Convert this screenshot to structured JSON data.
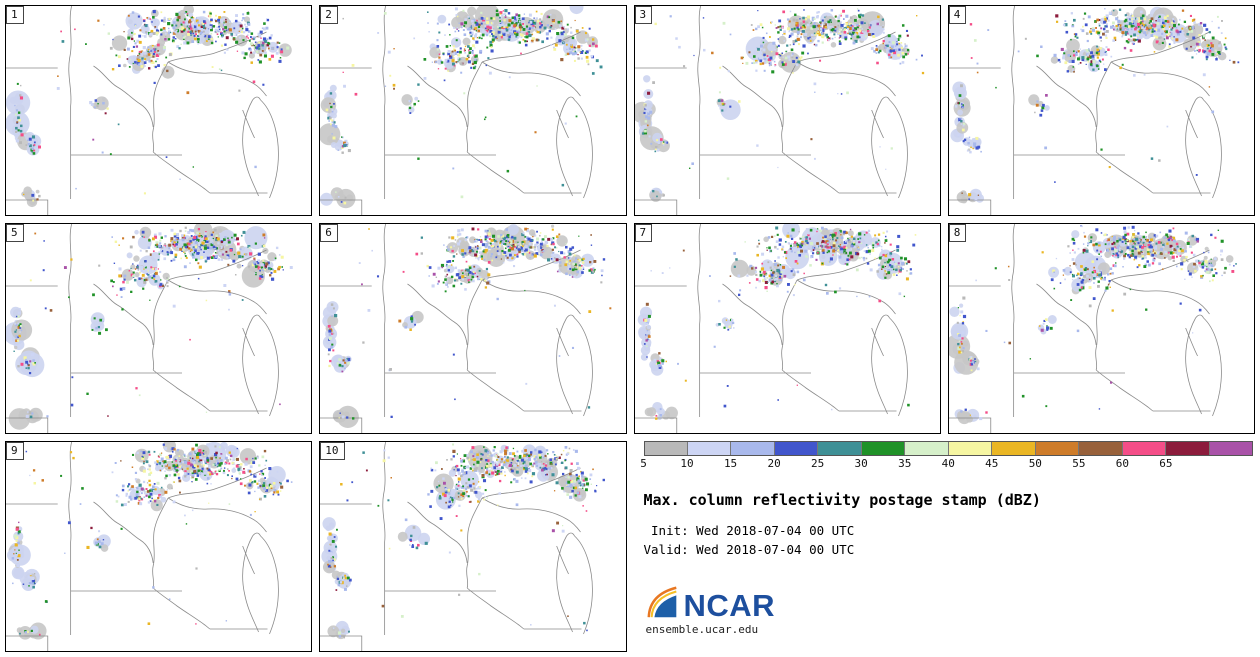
{
  "panels": [
    {
      "label": "1"
    },
    {
      "label": "2"
    },
    {
      "label": "3"
    },
    {
      "label": "4"
    },
    {
      "label": "5"
    },
    {
      "label": "6"
    },
    {
      "label": "7"
    },
    {
      "label": "8"
    },
    {
      "label": "9"
    },
    {
      "label": "10"
    }
  ],
  "legend": {
    "ticks": [
      "5",
      "10",
      "15",
      "20",
      "25",
      "30",
      "35",
      "40",
      "45",
      "50",
      "55",
      "60",
      "65"
    ],
    "colors": [
      "#b9b9b9",
      "#cdd5f4",
      "#a9b9ec",
      "#4156cc",
      "#3f9096",
      "#209228",
      "#d6f0ca",
      "#f6f6a2",
      "#eab624",
      "#ce7c2a",
      "#98613b",
      "#f44e88",
      "#8c1c3c",
      "#a952a8"
    ]
  },
  "info": {
    "title": "Max. column reflectivity postage stamp (dBZ)",
    "init_line": " Init: Wed 2018-07-04 00 UTC",
    "valid_line": "Valid: Wed 2018-07-04 00 UTC"
  },
  "branding": {
    "logo_text": "NCAR",
    "site": "ensemble.ucar.edu"
  }
}
